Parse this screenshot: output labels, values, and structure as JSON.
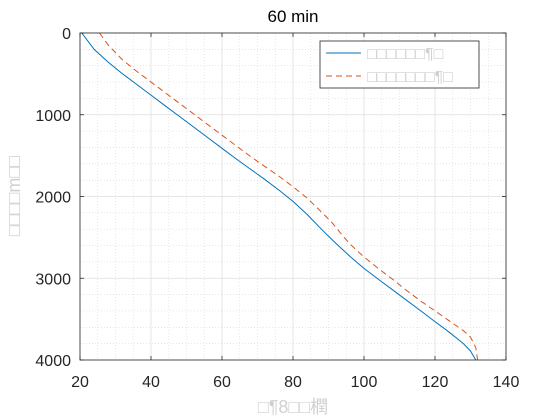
{
  "chart_data": {
    "type": "line",
    "title": "60 min",
    "xlabel": "□¶8□□橍",
    "ylabel": "□□□□m□□",
    "xlim": [
      20,
      140
    ],
    "ylim": [
      0,
      4000
    ],
    "y_reversed": true,
    "x_ticks": [
      20,
      40,
      60,
      80,
      100,
      120,
      140
    ],
    "y_ticks": [
      0,
      1000,
      2000,
      3000,
      4000
    ],
    "grid": true,
    "minor_grid": true,
    "legend_position": "top-right",
    "series": [
      {
        "name": "□□□□□□¶□",
        "color": "#0072bd",
        "dash": "solid",
        "x": [
          20.5,
          24,
          28,
          32,
          36,
          40,
          44,
          48,
          52,
          56,
          60,
          64,
          68,
          72,
          76,
          80,
          84,
          88,
          92,
          96,
          100,
          104,
          108,
          112,
          116,
          120,
          124,
          128,
          130,
          131.5
        ],
        "y": [
          0,
          200,
          360,
          500,
          630,
          760,
          890,
          1020,
          1150,
          1280,
          1410,
          1540,
          1665,
          1790,
          1920,
          2060,
          2220,
          2400,
          2570,
          2730,
          2880,
          3010,
          3140,
          3270,
          3400,
          3530,
          3660,
          3800,
          3890,
          4000
        ]
      },
      {
        "name": "□□□□□□□¶□",
        "color": "#d95319",
        "dash": "dashed",
        "x": [
          25.5,
          28,
          32,
          36,
          40,
          44,
          48,
          52,
          56,
          60,
          64,
          68,
          72,
          76,
          80,
          84,
          88,
          91,
          94,
          96,
          100,
          104,
          108,
          112,
          116,
          120,
          124,
          128,
          130,
          131.5,
          132
        ],
        "y": [
          0,
          150,
          330,
          470,
          600,
          730,
          860,
          990,
          1120,
          1250,
          1380,
          1510,
          1630,
          1750,
          1880,
          2020,
          2190,
          2320,
          2480,
          2580,
          2740,
          2880,
          3010,
          3150,
          3280,
          3400,
          3520,
          3640,
          3720,
          3850,
          4000
        ]
      }
    ]
  }
}
